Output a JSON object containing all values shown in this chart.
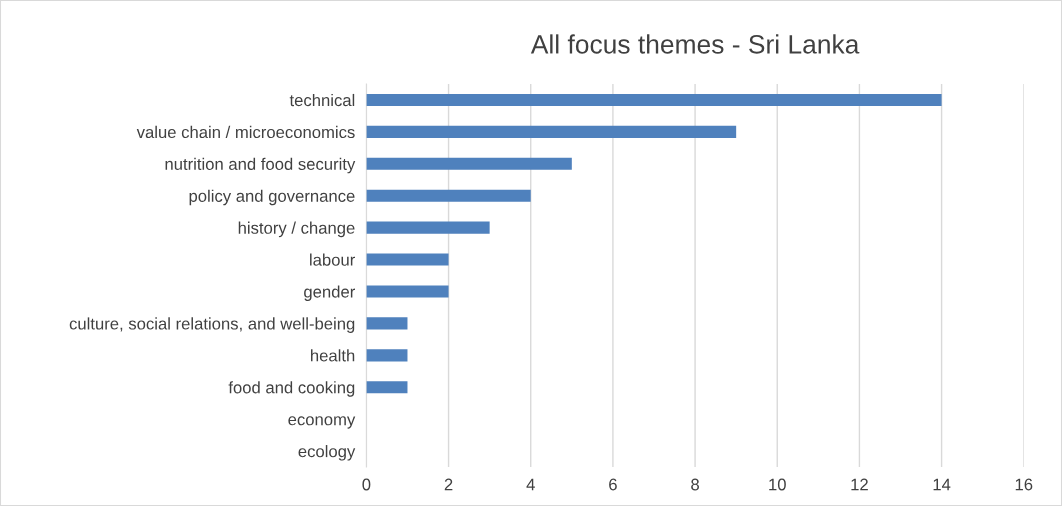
{
  "chart_data": {
    "type": "bar",
    "orientation": "horizontal",
    "title": "All focus themes - Sri Lanka",
    "categories": [
      "technical",
      "value chain / microeconomics",
      "nutrition and food security",
      "policy and governance",
      "history / change",
      "labour",
      "gender",
      "culture, social relations, and well-being",
      "health",
      "food and cooking",
      "economy",
      "ecology"
    ],
    "values": [
      14,
      9,
      5,
      4,
      3,
      2,
      2,
      1,
      1,
      1,
      0,
      0
    ],
    "color": "#4f81bd",
    "xlim": [
      0,
      16
    ],
    "xticks": [
      0,
      2,
      4,
      6,
      8,
      10,
      12,
      14,
      16
    ],
    "grid": "x",
    "legend": false
  }
}
